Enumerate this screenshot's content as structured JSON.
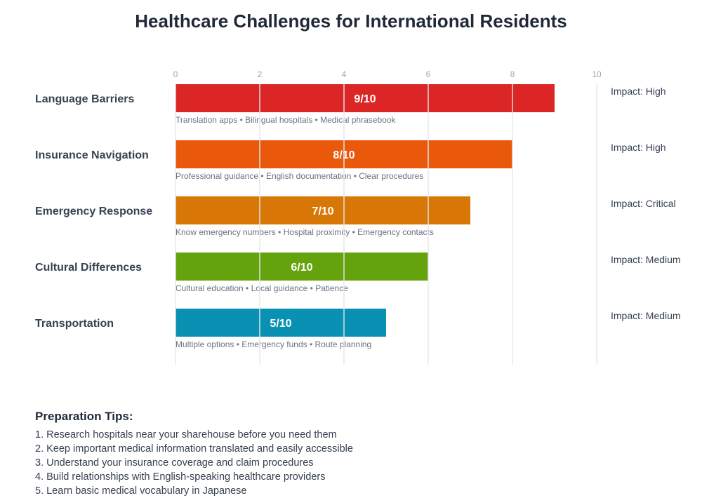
{
  "chart_data": {
    "type": "bar",
    "orientation": "horizontal",
    "title": "Healthcare Challenges for International Residents",
    "categories": [
      "Language Barriers",
      "Insurance Navigation",
      "Emergency Response",
      "Cultural Differences",
      "Transportation"
    ],
    "values": [
      9,
      8,
      7,
      6,
      5
    ],
    "value_labels": [
      "9/10",
      "8/10",
      "7/10",
      "6/10",
      "5/10"
    ],
    "colors": [
      "#dc2626",
      "#ea580c",
      "#d97706",
      "#65a30d",
      "#0891b2"
    ],
    "solutions": [
      "Translation apps • Bilingual hospitals • Medical phrasebook",
      "Professional guidance • English documentation • Clear procedures",
      "Know emergency numbers • Hospital proximity • Emergency contacts",
      "Cultural education • Local guidance • Patience",
      "Multiple options • Emergency funds • Route planning"
    ],
    "impacts": [
      "Impact: High",
      "Impact: High",
      "Impact: Critical",
      "Impact: Medium",
      "Impact: Medium"
    ],
    "xlim": [
      0,
      10
    ],
    "xticks": [
      "0",
      "2",
      "4",
      "6",
      "8",
      "10"
    ],
    "grid": true
  },
  "tips": {
    "heading": "Preparation Tips:",
    "items": [
      "1. Research hospitals near your sharehouse before you need them",
      "2. Keep important medical information translated and easily accessible",
      "3. Understand your insurance coverage and claim procedures",
      "4. Build relationships with English-speaking healthcare providers",
      "5. Learn basic medical vocabulary in Japanese"
    ]
  }
}
